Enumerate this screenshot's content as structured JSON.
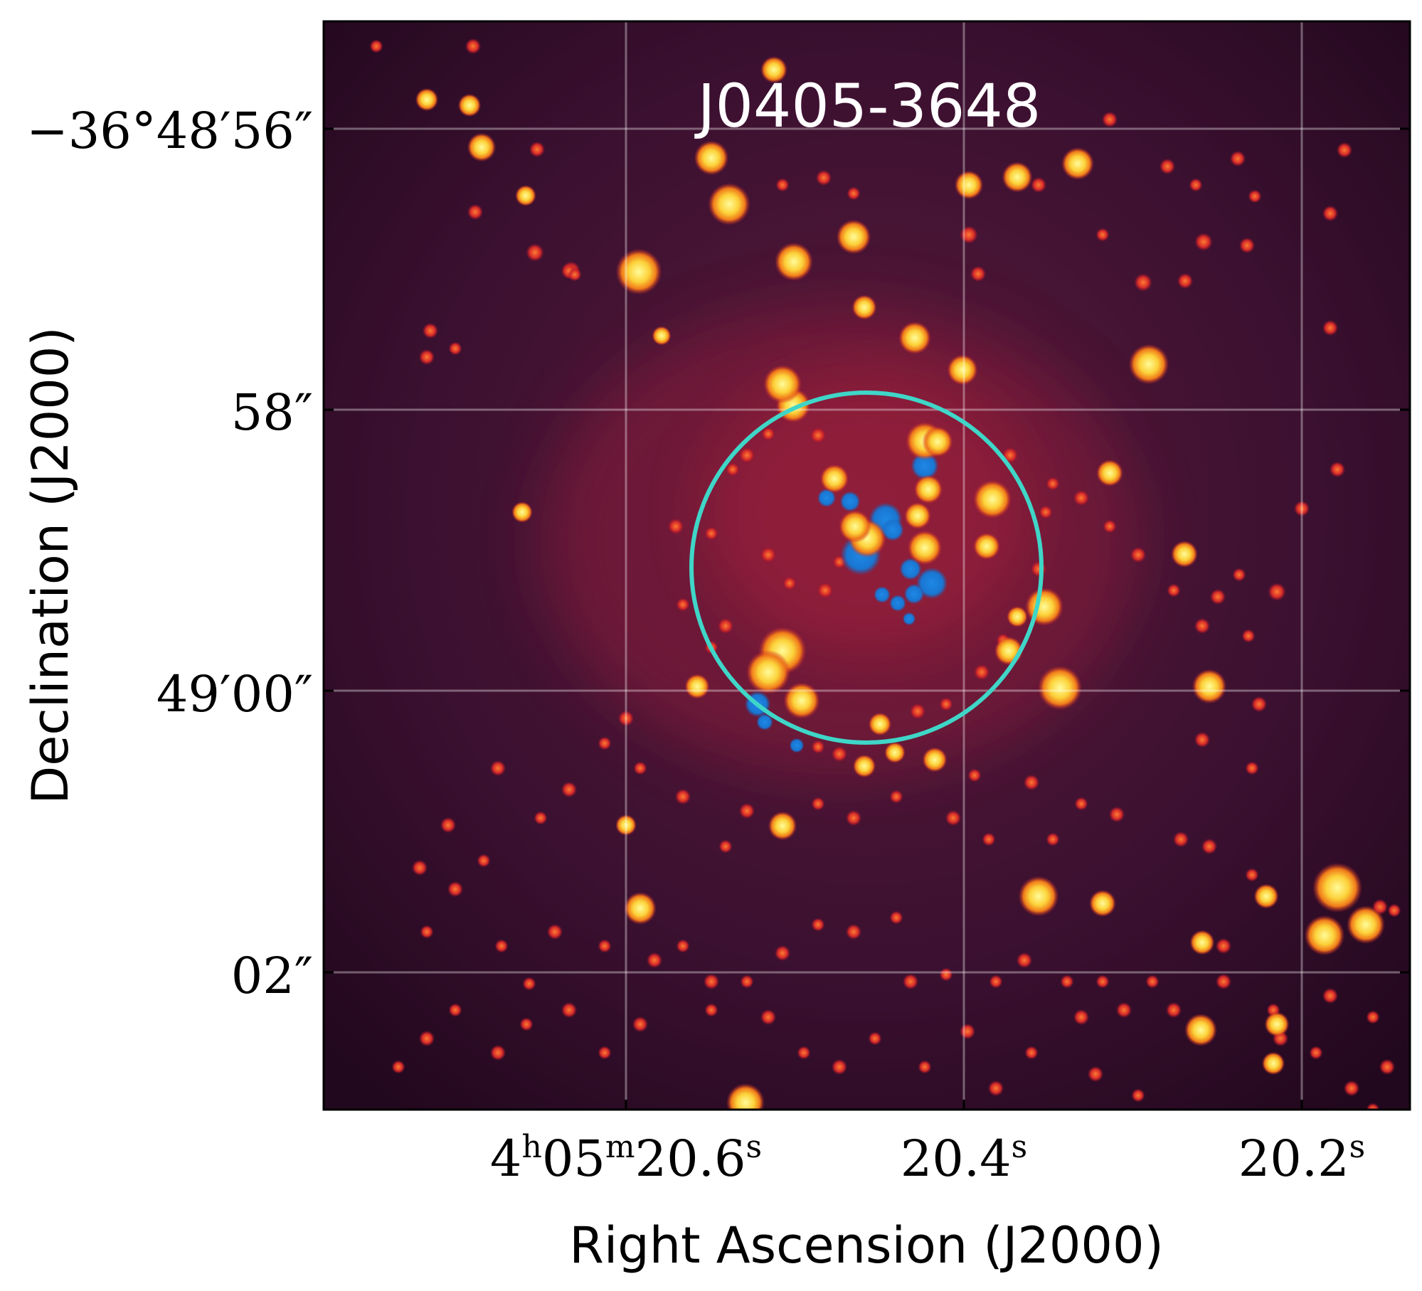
{
  "image": {
    "title": "J0405-3648",
    "colormap": "inferno",
    "overlay_color": "#1e88e5",
    "aperture_color": "#3fd6c8"
  },
  "axes": {
    "xlabel": "Right Ascension (J2000)",
    "ylabel": "Declination (J2000)",
    "xticks": [
      {
        "h": "4",
        "hsup": "h",
        "m": "05",
        "msup": "m",
        "s": "20.6",
        "ssup": "s"
      },
      {
        "s": "20.4",
        "ssup": "s"
      },
      {
        "s": "20.2",
        "ssup": "s"
      }
    ],
    "yticks": [
      {
        "text": "−36°48′56″"
      },
      {
        "text": "58″"
      },
      {
        "text": "49′00″"
      },
      {
        "text": "02″"
      }
    ],
    "grid": true
  }
}
